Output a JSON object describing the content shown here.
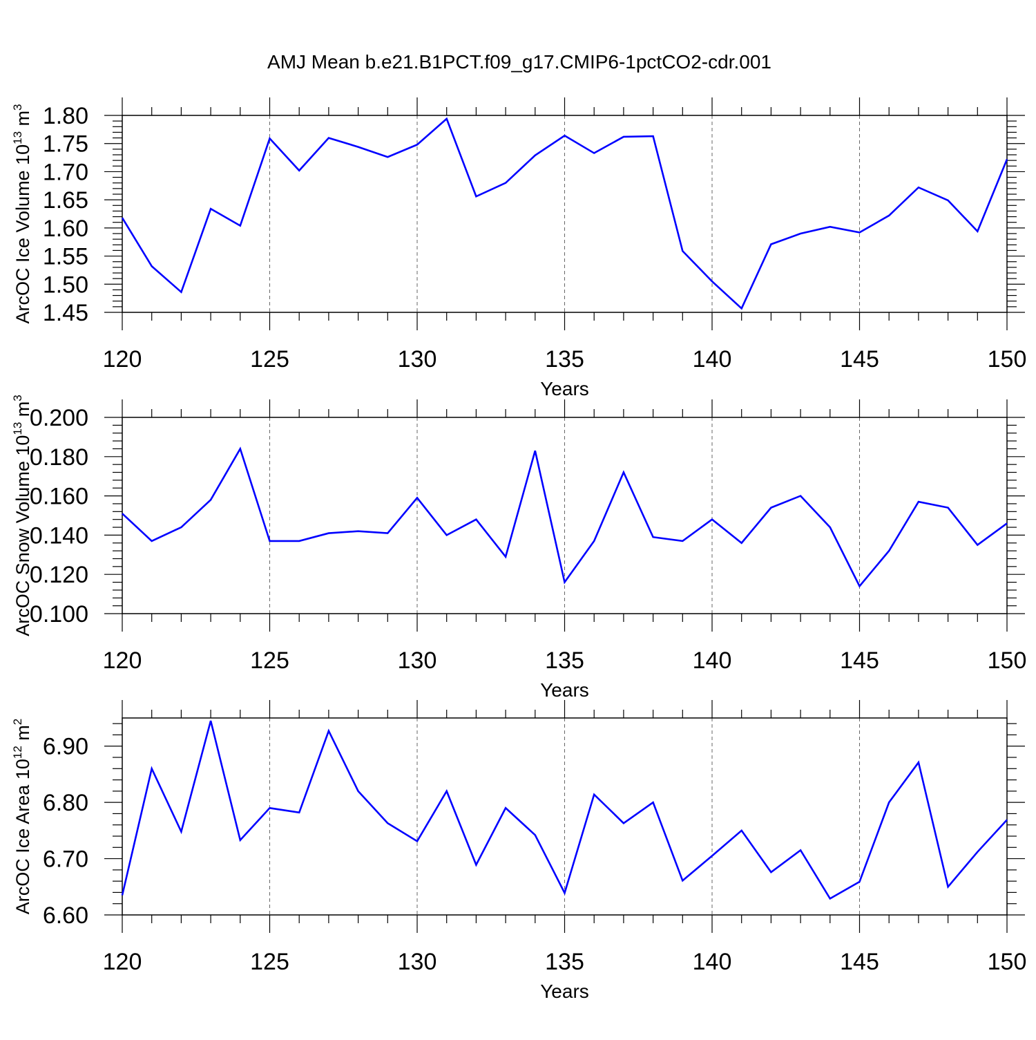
{
  "title": "AMJ Mean b.e21.B1PCT.f09_g17.CMIP6-1pctCO2-cdr.001",
  "line_color": "#0000ff",
  "chart_data": [
    {
      "type": "line",
      "ylabel_main": "ArcOC Ice Volume 10",
      "ylabel_exp": "13",
      "ylabel_unit": " m",
      "ylabel_unit_exp": "3",
      "xlabel": "Years",
      "xlim": [
        120,
        150
      ],
      "ylim": [
        1.45,
        1.8
      ],
      "xticks": [
        "120",
        "125",
        "130",
        "135",
        "140",
        "145",
        "150"
      ],
      "yticks": [
        "1.45",
        "1.50",
        "1.55",
        "1.60",
        "1.65",
        "1.70",
        "1.75",
        "1.80"
      ],
      "grid": "dashed vertical at major x ticks",
      "series": [
        {
          "x": [
            120,
            121,
            122,
            123,
            124,
            125,
            126,
            127,
            128,
            129,
            130,
            131,
            132,
            133,
            134,
            135,
            136,
            137,
            138,
            139,
            140,
            141,
            142,
            143,
            144,
            145,
            146,
            147,
            148,
            149,
            150
          ],
          "values": [
            1.618,
            1.532,
            1.486,
            1.634,
            1.604,
            1.759,
            1.702,
            1.76,
            1.744,
            1.726,
            1.748,
            1.794,
            1.656,
            1.68,
            1.729,
            1.764,
            1.733,
            1.762,
            1.763,
            1.559,
            1.505,
            1.457,
            1.571,
            1.59,
            1.602,
            1.592,
            1.622,
            1.672,
            1.649,
            1.594,
            1.722
          ]
        }
      ]
    },
    {
      "type": "line",
      "ylabel_main": "ArcOC Snow Volume 10",
      "ylabel_exp": "13",
      "ylabel_unit": " m",
      "ylabel_unit_exp": "3",
      "xlabel": "Years",
      "xlim": [
        120,
        150
      ],
      "ylim": [
        0.1,
        0.2
      ],
      "xticks": [
        "120",
        "125",
        "130",
        "135",
        "140",
        "145",
        "150"
      ],
      "yticks": [
        "0.100",
        "0.120",
        "0.140",
        "0.160",
        "0.180",
        "0.200"
      ],
      "grid": "dashed vertical at major x ticks",
      "series": [
        {
          "x": [
            120,
            121,
            122,
            123,
            124,
            125,
            126,
            127,
            128,
            129,
            130,
            131,
            132,
            133,
            134,
            135,
            136,
            137,
            138,
            139,
            140,
            141,
            142,
            143,
            144,
            145,
            146,
            147,
            148,
            149,
            150
          ],
          "values": [
            0.151,
            0.137,
            0.144,
            0.158,
            0.184,
            0.137,
            0.137,
            0.141,
            0.142,
            0.141,
            0.159,
            0.14,
            0.148,
            0.129,
            0.183,
            0.116,
            0.137,
            0.172,
            0.139,
            0.137,
            0.148,
            0.136,
            0.154,
            0.16,
            0.144,
            0.114,
            0.132,
            0.157,
            0.154,
            0.135,
            0.146
          ]
        }
      ]
    },
    {
      "type": "line",
      "ylabel_main": "ArcOC Ice Area 10",
      "ylabel_exp": "12",
      "ylabel_unit": " m",
      "ylabel_unit_exp": "2",
      "xlabel": "Years",
      "xlim": [
        120,
        150
      ],
      "ylim": [
        6.6,
        6.95
      ],
      "xticks": [
        "120",
        "125",
        "130",
        "135",
        "140",
        "145",
        "150"
      ],
      "yticks": [
        "6.60",
        "6.70",
        "6.80",
        "6.90"
      ],
      "grid": "dashed vertical at major x ticks",
      "series": [
        {
          "x": [
            120,
            121,
            122,
            123,
            124,
            125,
            126,
            127,
            128,
            129,
            130,
            131,
            132,
            133,
            134,
            135,
            136,
            137,
            138,
            139,
            140,
            141,
            142,
            143,
            144,
            145,
            146,
            147,
            148,
            149,
            150
          ],
          "values": [
            6.635,
            6.86,
            6.748,
            6.945,
            6.733,
            6.79,
            6.782,
            6.927,
            6.82,
            6.763,
            6.731,
            6.82,
            6.689,
            6.79,
            6.742,
            6.639,
            6.814,
            6.763,
            6.8,
            6.661,
            6.705,
            6.75,
            6.676,
            6.715,
            6.629,
            6.659,
            6.8,
            6.871,
            6.65,
            6.712,
            6.769
          ]
        }
      ]
    }
  ]
}
